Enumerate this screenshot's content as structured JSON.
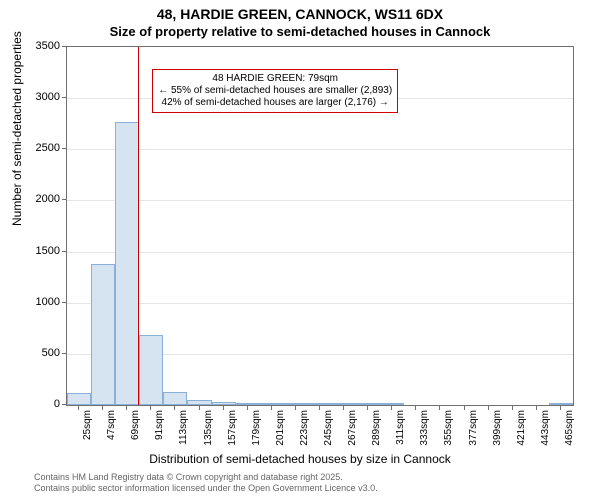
{
  "title_line1": "48, HARDIE GREEN, CANNOCK, WS11 6DX",
  "title_line2": "Size of property relative to semi-detached houses in Cannock",
  "ylabel": "Number of semi-detached properties",
  "xlabel": "Distribution of semi-detached houses by size in Cannock",
  "attribution_line1": "Contains HM Land Registry data © Crown copyright and database right 2025.",
  "attribution_line2": "Contains public sector information licensed under the Open Government Licence v3.0.",
  "annotation": {
    "line1": "48 HARDIE GREEN: 79sqm",
    "line2": "← 55% of semi-detached houses are smaller (2,893)",
    "line3": "42% of semi-detached houses are larger (2,176) →"
  },
  "chart": {
    "type": "histogram",
    "background_color": "#ffffff",
    "grid_color": "#e6e6e6",
    "axis_color": "#707070",
    "bar_fill": "#d6e4f2",
    "bar_stroke": "#8bb0d8",
    "marker_line_color": "#cc0000",
    "annotation_border": "#cc0000",
    "font_family": "Arial",
    "title_fontsize": 14,
    "label_fontsize": 12,
    "tick_fontsize": 11,
    "xtick_fontsize": 10,
    "marker_x": 79,
    "xlim": [
      14,
      476
    ],
    "ylim": [
      0,
      3500
    ],
    "ytick_step": 500,
    "xticks": [
      25,
      47,
      69,
      91,
      113,
      135,
      157,
      179,
      201,
      223,
      245,
      267,
      289,
      311,
      333,
      355,
      377,
      399,
      421,
      443,
      465
    ],
    "yticks": [
      0,
      500,
      1000,
      1500,
      2000,
      2500,
      3000,
      3500
    ],
    "bin_width": 22,
    "bins": [
      {
        "start": 14,
        "count": 120
      },
      {
        "start": 36,
        "count": 1380
      },
      {
        "start": 58,
        "count": 2770
      },
      {
        "start": 80,
        "count": 680
      },
      {
        "start": 102,
        "count": 130
      },
      {
        "start": 124,
        "count": 50
      },
      {
        "start": 146,
        "count": 30
      },
      {
        "start": 168,
        "count": 20
      },
      {
        "start": 190,
        "count": 18
      },
      {
        "start": 212,
        "count": 10
      },
      {
        "start": 234,
        "count": 6
      },
      {
        "start": 256,
        "count": 4
      },
      {
        "start": 278,
        "count": 2
      },
      {
        "start": 300,
        "count": 2
      },
      {
        "start": 322,
        "count": 0
      },
      {
        "start": 344,
        "count": 0
      },
      {
        "start": 366,
        "count": 0
      },
      {
        "start": 388,
        "count": 0
      },
      {
        "start": 410,
        "count": 0
      },
      {
        "start": 432,
        "count": 0
      },
      {
        "start": 454,
        "count": 2
      }
    ]
  }
}
